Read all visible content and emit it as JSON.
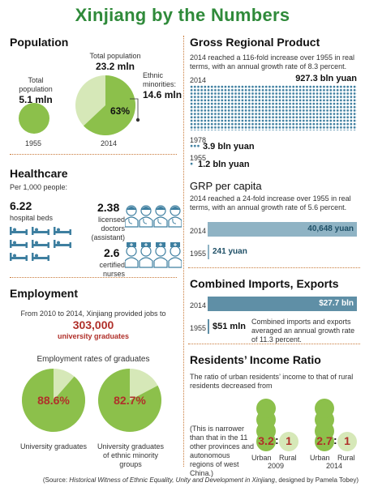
{
  "title": "Xinjiang by the Numbers",
  "colors": {
    "green": "#8cc04b",
    "light_green": "#d6e8b8",
    "dark_green": "#2f8a3a",
    "blue": "#3e7fa0",
    "bar_blue": "#8fb3c4",
    "red_text": "#b0302a"
  },
  "population": {
    "heading": "Population",
    "label_1955": "Total population",
    "value_1955": "5.1 mln",
    "year_1955": "1955",
    "label_2014": "Total population",
    "value_2014": "23.2 mln",
    "year_2014": "2014",
    "minorities_label": "Ethnic minorities:",
    "minorities_value": "14.6 mln",
    "minorities_pct": "63%",
    "minorities_share": 0.63
  },
  "grp": {
    "heading": "Gross Regional Product",
    "desc": "2014 reached a 116-fold increase over 1955 in real terms, with an annual growth rate of 8.3 percent.",
    "year_2014": "2014",
    "value_2014": "927.3 bln yuan",
    "year_1978": "1978",
    "value_1978": "3.9 bln yuan",
    "year_1955": "1955",
    "value_1955": "1.2 bln yuan"
  },
  "grp_per_capita": {
    "heading": "GRP per capita",
    "desc": "2014 reached a 24-fold increase over 1955 in real terms, with an annual growth rate of 5.6 percent.",
    "year_2014": "2014",
    "value_2014": "40,648 yuan",
    "year_1955": "1955",
    "value_1955": "241 yuan"
  },
  "healthcare": {
    "heading": "Healthcare",
    "per": "Per 1,000 people:",
    "beds_value": "6.22",
    "beds_label": "hospital beds",
    "doctors_value": "2.38",
    "doctors_label": "licensed doctors (assistant)",
    "nurses_value": "2.6",
    "nurses_label": "certified nurses"
  },
  "trade": {
    "heading": "Combined Imports, Exports",
    "year_2014": "2014",
    "value_2014": "$27.7 bln",
    "year_1955": "1955",
    "value_1955": "$51 mln",
    "desc": "Combined imports and exports averaged an annual growth rate of 11.3 percent."
  },
  "employment": {
    "heading": "Employment",
    "intro": "From 2010 to 2014, Xinjiang provided jobs to",
    "jobs_value": "303,000",
    "jobs_label": "university graduates",
    "rates_heading": "Employment rates of graduates",
    "rate_1": "88.6%",
    "rate_1_value": 0.886,
    "rate_1_label": "University graduates",
    "rate_2": "82.7%",
    "rate_2_value": 0.827,
    "rate_2_label": "University graduates of ethnic minority groups"
  },
  "income": {
    "heading": "Residents’ Income Ratio",
    "desc": "The ratio of urban residents’ income to that of rural residents decreased from",
    "note": "(This is narrower than that in the 11 other provinces and autonomous regions of west China.)",
    "ratio_2009_urban": "3.2",
    "ratio_2009_rural": "1",
    "year_2009": "2009",
    "ratio_2014_urban": "2.7",
    "ratio_2014_rural": "1",
    "year_2014": "2014",
    "urban_label": "Urban",
    "rural_label": "Rural",
    "colon": ":"
  },
  "source": {
    "prefix": "(Source: ",
    "book": "Historical Witness of Ethnic Equality, Unity and Development in Xinjiang",
    "suffix": ", designed by Pamela Tobey)"
  }
}
